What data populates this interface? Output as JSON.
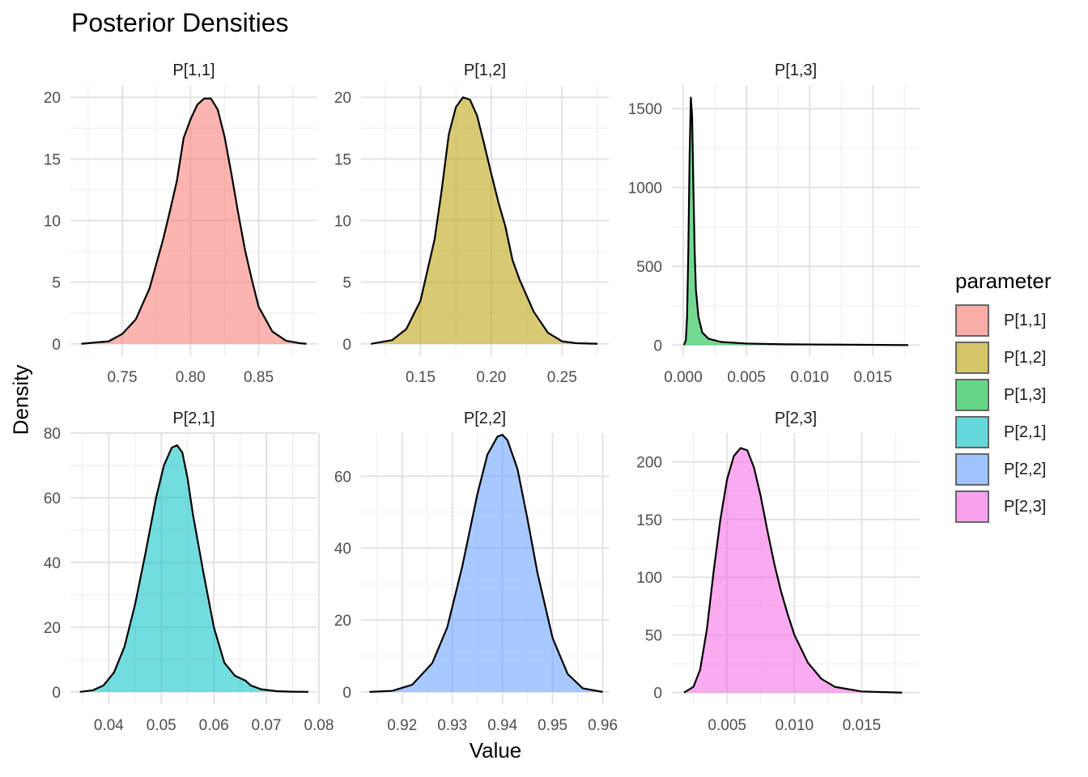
{
  "chart_data": {
    "type": "area",
    "title": "Posterior Densities",
    "xlabel": "Value",
    "ylabel": "Density",
    "legend": {
      "title": "parameter",
      "position": "right",
      "entries": [
        {
          "label": "P[1,1]",
          "color": "#F8766D"
        },
        {
          "label": "P[1,2]",
          "color": "#B79F00"
        },
        {
          "label": "P[1,3]",
          "color": "#00BA38"
        },
        {
          "label": "P[2,1]",
          "color": "#00BFC4"
        },
        {
          "label": "P[2,2]",
          "color": "#619CFF"
        },
        {
          "label": "P[2,3]",
          "color": "#F564E3"
        }
      ]
    },
    "grid": true,
    "facets": [
      {
        "label": "P[1,1]",
        "color": "#F8766D",
        "xlim": [
          0.712,
          0.893
        ],
        "ylim": [
          -1,
          21
        ],
        "xticks": [
          0.75,
          0.8,
          0.85
        ],
        "xtick_labels": [
          "0.75",
          "0.80",
          "0.85"
        ],
        "yticks": [
          0,
          5,
          10,
          15,
          20
        ],
        "ytick_labels": [
          "0",
          "5",
          "10",
          "15",
          "20"
        ],
        "x": [
          0.72,
          0.74,
          0.75,
          0.76,
          0.77,
          0.78,
          0.785,
          0.79,
          0.795,
          0.8,
          0.805,
          0.81,
          0.815,
          0.82,
          0.825,
          0.83,
          0.835,
          0.84,
          0.845,
          0.85,
          0.86,
          0.87,
          0.88,
          0.885
        ],
        "y": [
          0.0,
          0.2,
          0.8,
          2.0,
          4.5,
          8.5,
          10.8,
          13.2,
          16.7,
          18.2,
          19.4,
          19.9,
          19.9,
          19.0,
          16.8,
          13.8,
          10.6,
          7.6,
          5.2,
          3.0,
          1.0,
          0.25,
          0.05,
          0.0
        ]
      },
      {
        "label": "P[1,2]",
        "color": "#B79F00",
        "xlim": [
          0.108,
          0.283
        ],
        "ylim": [
          -1,
          21
        ],
        "xticks": [
          0.15,
          0.2,
          0.25
        ],
        "xtick_labels": [
          "0.15",
          "0.20",
          "0.25"
        ],
        "yticks": [
          0,
          5,
          10,
          15,
          20
        ],
        "ytick_labels": [
          "0",
          "5",
          "10",
          "15",
          "20"
        ],
        "x": [
          0.115,
          0.13,
          0.14,
          0.15,
          0.16,
          0.165,
          0.17,
          0.175,
          0.18,
          0.185,
          0.19,
          0.195,
          0.2,
          0.205,
          0.21,
          0.215,
          0.22,
          0.23,
          0.24,
          0.25,
          0.26,
          0.275
        ],
        "y": [
          0.0,
          0.3,
          1.2,
          3.5,
          8.5,
          12.5,
          17.0,
          19.2,
          20.0,
          19.8,
          18.5,
          16.2,
          13.8,
          11.5,
          9.5,
          6.8,
          5.2,
          2.6,
          0.9,
          0.2,
          0.05,
          0.0
        ]
      },
      {
        "label": "P[1,3]",
        "color": "#00BA38",
        "xlim": [
          -0.0009,
          0.0187
        ],
        "ylim": [
          -70,
          1650
        ],
        "xticks": [
          0.0,
          0.005,
          0.01,
          0.015
        ],
        "xtick_labels": [
          "0.000",
          "0.005",
          "0.010",
          "0.015"
        ],
        "yticks": [
          0,
          500,
          1000,
          1500
        ],
        "ytick_labels": [
          "0",
          "500",
          "1000",
          "1500"
        ],
        "x": [
          5e-05,
          0.0002,
          0.0003,
          0.0004,
          0.0005,
          0.0006,
          0.0007,
          0.0008,
          0.0009,
          0.001,
          0.0012,
          0.0015,
          0.002,
          0.003,
          0.005,
          0.008,
          0.012,
          0.0178
        ],
        "y": [
          0,
          30,
          180,
          600,
          1200,
          1570,
          1450,
          1000,
          600,
          350,
          180,
          80,
          40,
          20,
          10,
          5,
          3,
          0
        ]
      },
      {
        "label": "P[2,1]",
        "color": "#00BFC4",
        "xlim": [
          0.0327,
          0.0797
        ],
        "ylim": [
          -3.8,
          80
        ],
        "xticks": [
          0.04,
          0.05,
          0.06,
          0.07,
          0.08
        ],
        "xtick_labels": [
          "0.04",
          "0.05",
          "0.06",
          "0.07",
          "0.08"
        ],
        "yticks": [
          0,
          20,
          40,
          60,
          80
        ],
        "ytick_labels": [
          "0",
          "20",
          "40",
          "60",
          "80"
        ],
        "x": [
          0.0345,
          0.037,
          0.039,
          0.041,
          0.043,
          0.045,
          0.047,
          0.049,
          0.0505,
          0.052,
          0.053,
          0.054,
          0.055,
          0.056,
          0.058,
          0.06,
          0.062,
          0.064,
          0.066,
          0.067,
          0.069,
          0.072,
          0.075,
          0.078
        ],
        "y": [
          0.0,
          0.5,
          2.0,
          6.0,
          14.0,
          27.0,
          43.0,
          60.0,
          70.0,
          75.5,
          76.2,
          74.0,
          66.0,
          55.0,
          37.0,
          20.0,
          9.0,
          5.0,
          3.5,
          2.0,
          0.8,
          0.2,
          0.05,
          0.0
        ]
      },
      {
        "label": "P[2,2]",
        "color": "#619CFF",
        "xlim": [
          0.9118,
          0.9612
        ],
        "ylim": [
          -3.4,
          72
        ],
        "xticks": [
          0.92,
          0.93,
          0.94,
          0.95,
          0.96
        ],
        "xtick_labels": [
          "0.92",
          "0.93",
          "0.94",
          "0.95",
          "0.96"
        ],
        "yticks": [
          0,
          20,
          40,
          60
        ],
        "ytick_labels": [
          "0",
          "20",
          "40",
          "60"
        ],
        "x": [
          0.9135,
          0.918,
          0.922,
          0.926,
          0.929,
          0.932,
          0.935,
          0.937,
          0.939,
          0.94,
          0.941,
          0.943,
          0.945,
          0.947,
          0.95,
          0.953,
          0.956,
          0.96
        ],
        "y": [
          0.0,
          0.3,
          2.0,
          8.0,
          18.0,
          35.0,
          55.0,
          66.0,
          71.0,
          71.5,
          70.0,
          62.0,
          48.0,
          33.0,
          15.0,
          5.0,
          1.0,
          0.0
        ]
      },
      {
        "label": "P[2,3]",
        "color": "#F564E3",
        "xlim": [
          0.0009,
          0.0193
        ],
        "ylim": [
          -10,
          225
        ],
        "xticks": [
          0.005,
          0.01,
          0.015
        ],
        "xtick_labels": [
          "0.005",
          "0.010",
          "0.015"
        ],
        "yticks": [
          0,
          50,
          100,
          150,
          200
        ],
        "ytick_labels": [
          "0",
          "50",
          "100",
          "150",
          "200"
        ],
        "x": [
          0.0018,
          0.0025,
          0.003,
          0.0035,
          0.004,
          0.0045,
          0.005,
          0.0055,
          0.006,
          0.0065,
          0.007,
          0.0075,
          0.008,
          0.0085,
          0.009,
          0.0095,
          0.01,
          0.011,
          0.012,
          0.013,
          0.015,
          0.018
        ],
        "y": [
          0,
          5,
          20,
          55,
          105,
          150,
          185,
          205,
          212,
          210,
          195,
          170,
          140,
          112,
          88,
          68,
          50,
          26,
          12,
          5,
          1,
          0
        ]
      }
    ]
  }
}
